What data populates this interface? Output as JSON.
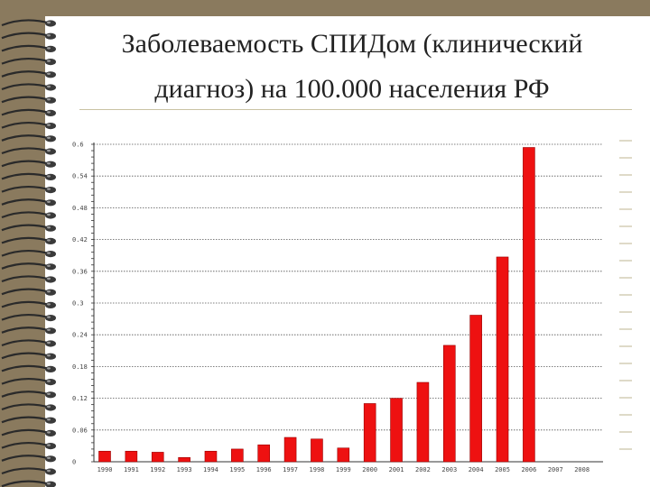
{
  "slide": {
    "title_line1": "Заболеваемость СПИДом (клинический",
    "title_line2": "диагноз) на 100.000 населения РФ"
  },
  "colors": {
    "bar": "#ee1111",
    "bar_edge": "#990000",
    "grid": "#555555",
    "background": "#8a7a5e"
  },
  "chart_data": {
    "type": "bar",
    "title": "",
    "xlabel": "",
    "ylabel": "",
    "categories": [
      "1990",
      "1991",
      "1992",
      "1993",
      "1994",
      "1995",
      "1996",
      "1997",
      "1998",
      "1999",
      "2000",
      "2001",
      "2002",
      "2003",
      "2004",
      "2005",
      "2006",
      "2007",
      "2008"
    ],
    "values": [
      0.02,
      0.02,
      0.018,
      0.008,
      0.02,
      0.024,
      0.032,
      0.046,
      0.043,
      0.026,
      0.11,
      0.12,
      0.15,
      0.22,
      0.277,
      0.387,
      0.594,
      0,
      0
    ],
    "ylim": [
      0,
      0.6
    ],
    "yticks": [
      0,
      0.06,
      0.12,
      0.18,
      0.24,
      0.3,
      0.36,
      0.42,
      0.48,
      0.54,
      0.6
    ],
    "ytick_labels": [
      "0",
      "0.06",
      "0.12",
      "0.18",
      "0.24",
      "0.3",
      "0.36",
      "0.42",
      "0.48",
      "0.54",
      "0.6"
    ],
    "grid": true,
    "legend": "none"
  }
}
